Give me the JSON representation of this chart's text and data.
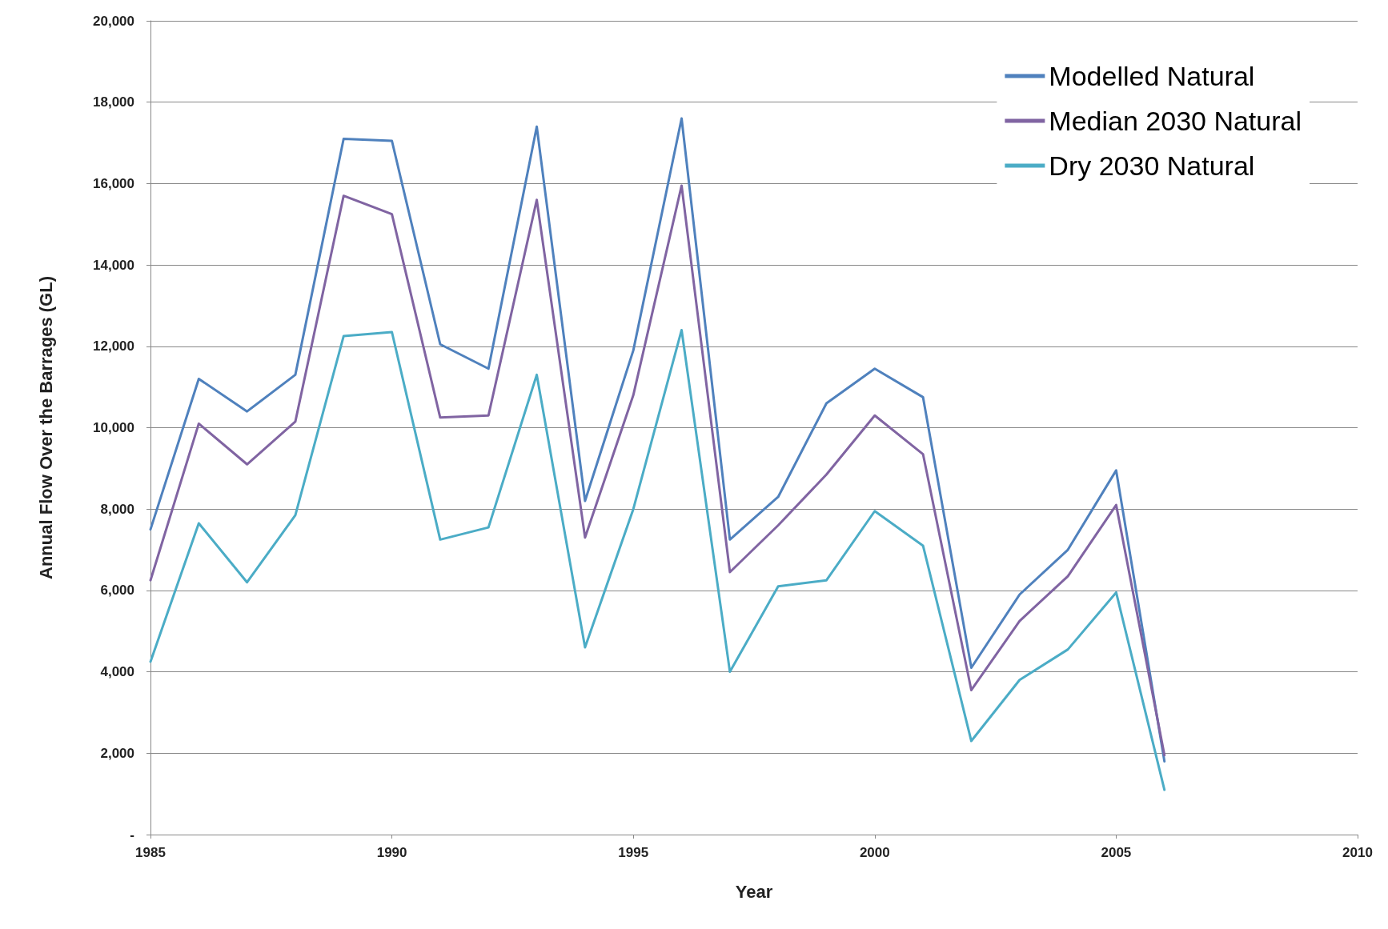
{
  "chart_data": {
    "type": "line",
    "xlabel": "Year",
    "ylabel": "Annual Flow Over the Barrages (GL)",
    "x": [
      1985,
      1986,
      1987,
      1988,
      1989,
      1990,
      1991,
      1992,
      1993,
      1994,
      1995,
      1996,
      1997,
      1998,
      1999,
      2000,
      2001,
      2002,
      2003,
      2004,
      2005,
      2006
    ],
    "series": [
      {
        "name": "Modelled Natural",
        "color": "#4f81bd",
        "values": [
          7500,
          11200,
          10400,
          11300,
          17100,
          17050,
          12050,
          11450,
          17400,
          8200,
          11900,
          17600,
          7250,
          8300,
          10600,
          11450,
          10750,
          4100,
          5900,
          7000,
          8950,
          1800
        ]
      },
      {
        "name": "Median 2030 Natural",
        "color": "#8064a2",
        "values": [
          6250,
          10100,
          9100,
          10150,
          15700,
          15250,
          10250,
          10300,
          15600,
          7300,
          10800,
          15950,
          6450,
          7600,
          8850,
          10300,
          9350,
          3550,
          5250,
          6350,
          8100,
          1950
        ]
      },
      {
        "name": "Dry 2030 Natural",
        "color": "#4bacc6",
        "values": [
          4250,
          7650,
          6200,
          7850,
          12250,
          12350,
          7250,
          7550,
          11300,
          4600,
          8000,
          12400,
          4000,
          6100,
          6250,
          7950,
          7100,
          2300,
          3800,
          4550,
          5950,
          1100
        ]
      }
    ],
    "xlim": [
      1985,
      2010
    ],
    "xticks": [
      1985,
      1990,
      1995,
      2000,
      2005,
      2010
    ],
    "ylim": [
      0,
      20000
    ],
    "yticks": [
      {
        "value": 0,
        "label": "-"
      },
      {
        "value": 2000,
        "label": "2,000"
      },
      {
        "value": 4000,
        "label": "4,000"
      },
      {
        "value": 6000,
        "label": "6,000"
      },
      {
        "value": 8000,
        "label": "8,000"
      },
      {
        "value": 10000,
        "label": "10,000"
      },
      {
        "value": 12000,
        "label": "12,000"
      },
      {
        "value": 14000,
        "label": "14,000"
      },
      {
        "value": 16000,
        "label": "16,000"
      },
      {
        "value": 18000,
        "label": "18,000"
      },
      {
        "value": 20000,
        "label": "20,000"
      }
    ],
    "grid": "y",
    "legend": "top right",
    "marker": "none",
    "line_style": "solid"
  }
}
